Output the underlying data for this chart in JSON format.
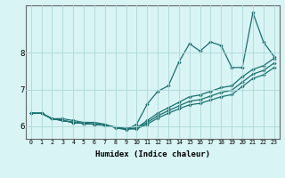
{
  "xlabel": "Humidex (Indice chaleur)",
  "background_color": "#d8f4f4",
  "grid_color": "#aed8d8",
  "line_color": "#1a7070",
  "xlim": [
    -0.5,
    23.5
  ],
  "ylim": [
    5.65,
    9.3
  ],
  "yticks": [
    6,
    7,
    8
  ],
  "xticks": [
    0,
    1,
    2,
    3,
    4,
    5,
    6,
    7,
    8,
    9,
    10,
    11,
    12,
    13,
    14,
    15,
    16,
    17,
    18,
    19,
    20,
    21,
    22,
    23
  ],
  "series": [
    [
      6.35,
      6.35,
      6.2,
      6.2,
      6.15,
      6.1,
      6.1,
      6.05,
      5.95,
      5.9,
      6.05,
      6.6,
      6.95,
      7.1,
      7.75,
      8.25,
      8.05,
      8.3,
      8.2,
      7.6,
      7.6,
      9.1,
      8.3,
      7.9
    ],
    [
      6.35,
      6.35,
      6.2,
      6.15,
      6.1,
      6.07,
      6.05,
      6.02,
      5.97,
      5.93,
      5.95,
      6.15,
      6.35,
      6.5,
      6.65,
      6.8,
      6.85,
      6.95,
      7.05,
      7.1,
      7.35,
      7.55,
      7.65,
      7.85
    ],
    [
      6.35,
      6.35,
      6.2,
      6.15,
      6.1,
      6.07,
      6.05,
      6.02,
      5.97,
      5.92,
      5.93,
      6.1,
      6.28,
      6.42,
      6.55,
      6.68,
      6.72,
      6.82,
      6.92,
      6.98,
      7.2,
      7.42,
      7.52,
      7.72
    ],
    [
      6.35,
      6.35,
      6.2,
      6.15,
      6.1,
      6.07,
      6.05,
      6.02,
      5.97,
      5.92,
      5.92,
      6.05,
      6.22,
      6.35,
      6.47,
      6.58,
      6.62,
      6.71,
      6.8,
      6.86,
      7.08,
      7.3,
      7.4,
      7.6
    ]
  ]
}
